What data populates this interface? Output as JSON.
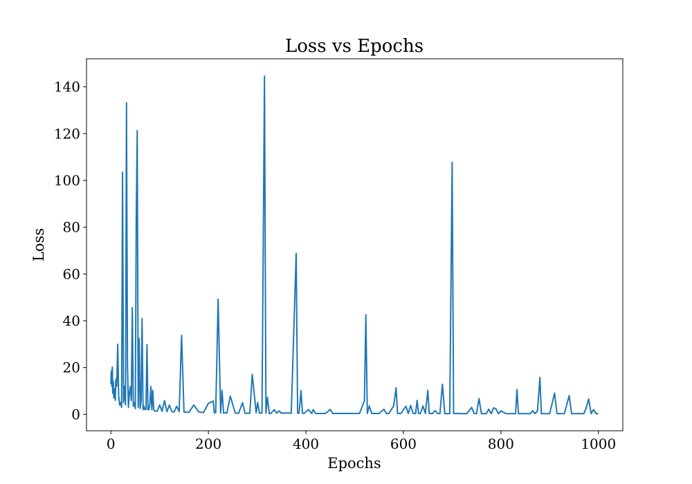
{
  "chart_data": {
    "type": "line",
    "title": "Loss vs Epochs",
    "xlabel": "Epochs",
    "ylabel": "Loss",
    "xlim": [
      -50,
      1050
    ],
    "ylim": [
      -7,
      152
    ],
    "xticks": [
      0,
      200,
      400,
      600,
      800,
      1000
    ],
    "yticks": [
      0,
      20,
      40,
      60,
      80,
      100,
      120,
      140
    ],
    "grid": false,
    "legend": "none",
    "color": "#1f77b4",
    "series": [
      {
        "x": [
          0,
          1,
          2,
          3,
          4,
          5,
          6,
          7,
          8,
          9,
          10,
          12,
          14,
          16,
          18,
          20,
          22,
          24,
          26,
          28,
          30,
          32,
          34,
          36,
          38,
          40,
          42,
          44,
          46,
          48,
          50,
          52,
          54,
          56,
          58,
          60,
          62,
          64,
          66,
          68,
          70,
          72,
          74,
          76,
          78,
          80,
          82,
          84,
          86,
          88,
          90,
          92,
          95,
          100,
          105,
          110,
          115,
          120,
          125,
          130,
          135,
          140,
          145,
          150,
          155,
          160,
          170,
          180,
          185,
          190,
          200,
          210,
          212,
          215,
          220,
          225,
          228,
          231,
          235,
          238,
          245,
          255,
          258,
          262,
          270,
          275,
          278,
          285,
          290,
          298,
          301,
          305,
          310,
          315,
          318,
          321,
          325,
          328,
          335,
          340,
          345,
          350,
          360,
          370,
          380,
          383,
          386,
          390,
          393,
          396,
          405,
          412,
          415,
          420,
          430,
          440,
          450,
          455,
          460,
          470,
          480,
          490,
          500,
          510,
          520,
          523,
          526,
          530,
          535,
          540,
          550,
          560,
          565,
          570,
          580,
          585,
          588,
          595,
          605,
          610,
          615,
          620,
          625,
          628,
          631,
          635,
          640,
          645,
          650,
          653,
          660,
          665,
          670,
          675,
          680,
          685,
          690,
          695,
          700,
          703,
          710,
          720,
          730,
          740,
          745,
          750,
          755,
          760,
          770,
          775,
          780,
          785,
          790,
          795,
          800,
          810,
          820,
          830,
          833,
          836,
          840,
          850,
          860,
          865,
          870,
          875,
          880,
          883,
          890,
          900,
          910,
          915,
          920,
          930,
          940,
          945,
          950,
          960,
          965,
          970,
          975,
          980,
          985,
          990,
          995,
          1000
        ],
        "y": [
          13,
          18.5,
          12,
          20.3,
          9,
          14,
          7,
          11,
          10,
          6,
          15,
          12,
          30,
          8,
          4,
          5,
          3,
          103.5,
          5,
          12,
          4,
          133.2,
          21.5,
          3,
          9,
          12,
          6,
          45.6,
          3.5,
          5,
          2.5,
          84.2,
          121.3,
          3,
          32.4,
          2.5,
          6,
          40.9,
          2,
          3.5,
          2,
          2.2,
          29.8,
          2,
          2,
          4.5,
          11.9,
          2,
          10.3,
          1.7,
          1.5,
          1.4,
          1.4,
          4,
          1.3,
          5.9,
          1.2,
          4,
          1.2,
          1.1,
          3.5,
          1.2,
          33.8,
          1,
          0.9,
          0.9,
          4,
          1.1,
          0.9,
          0.8,
          4.7,
          5.7,
          0.7,
          0.7,
          49.3,
          0.6,
          10.3,
          0.6,
          0.6,
          0.6,
          7.8,
          0.6,
          0.5,
          0.5,
          5,
          0.5,
          0.5,
          0.5,
          17.1,
          0.6,
          5.1,
          0.5,
          0.6,
          144.6,
          0.5,
          7.3,
          0.4,
          0.4,
          2,
          0.5,
          1.5,
          0.5,
          0.6,
          0.5,
          68.8,
          0.5,
          0.5,
          10.2,
          0.5,
          0.4,
          2.1,
          0.4,
          2,
          0.4,
          0.4,
          0.4,
          2.1,
          0.4,
          0.4,
          0.4,
          0.4,
          0.4,
          0.4,
          0.4,
          5.8,
          42.6,
          0.4,
          3.6,
          0.4,
          0.4,
          0.4,
          2.2,
          0.4,
          0.4,
          3.6,
          11.4,
          0.4,
          0.4,
          3.5,
          0.4,
          3.8,
          0.4,
          0.4,
          6,
          0.4,
          0.4,
          3.6,
          0.4,
          10.3,
          0.4,
          0.4,
          1.6,
          0.4,
          0.4,
          12.9,
          0.3,
          0.3,
          0.3,
          107.8,
          0.4,
          0.4,
          0.3,
          0.3,
          3,
          0.4,
          0.3,
          6.8,
          0.3,
          0.3,
          2.2,
          0.3,
          2.8,
          2.3,
          0.3,
          1.5,
          0.3,
          0.3,
          0.3,
          10.6,
          0.3,
          0.3,
          0.3,
          0.3,
          1.5,
          0.3,
          1.5,
          15.8,
          0.3,
          0.3,
          0.3,
          9.1,
          0.3,
          0.3,
          0.3,
          8,
          0.3,
          0.3,
          0.3,
          0.3,
          0.3,
          2.8,
          6.6,
          0.3,
          2,
          0.3,
          0.3
        ]
      }
    ]
  }
}
